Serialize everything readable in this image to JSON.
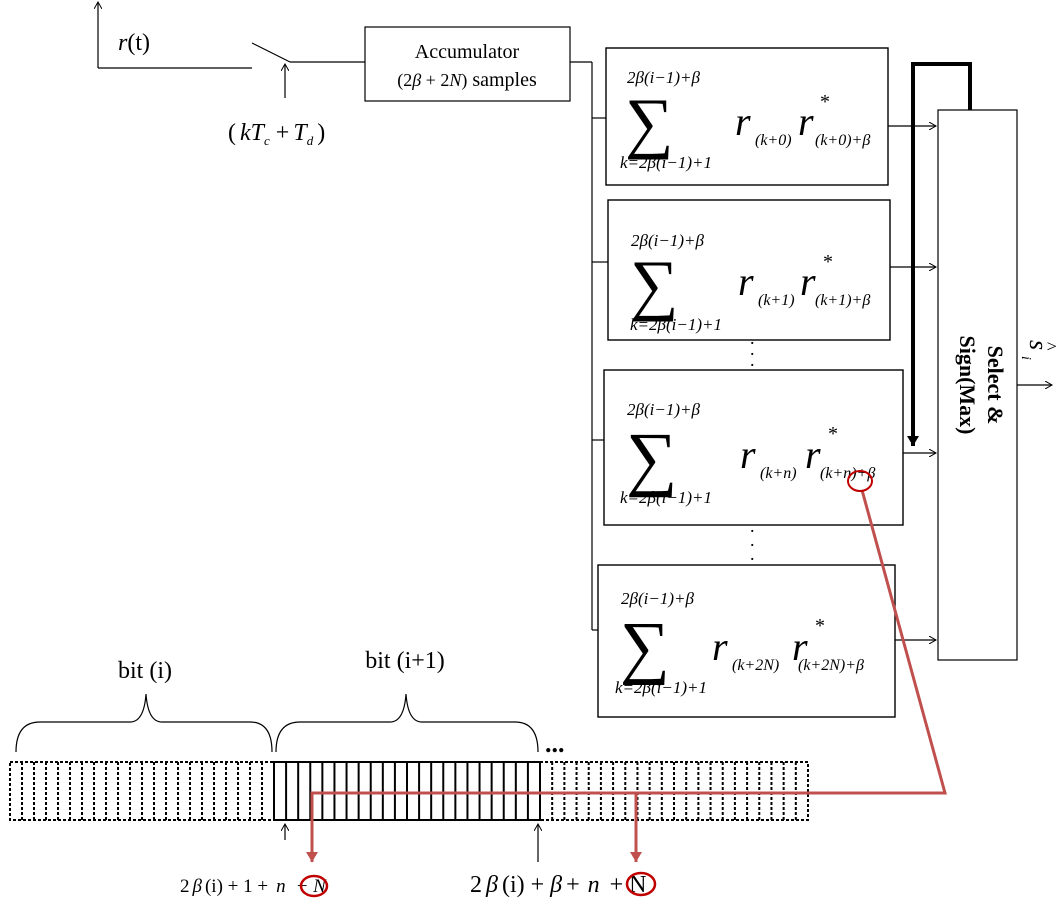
{
  "signal": {
    "r": "r",
    "t": "(t)",
    "sampling": {
      "open": "(",
      "k": "k",
      "T": "T",
      "c": "c",
      "plus": "+",
      "T2": "T",
      "d": "d",
      "close": ")"
    }
  },
  "accumulator": {
    "title": "Accumulator",
    "paren_open": "(2",
    "beta": "β",
    "plus2": " + 2",
    "N": "N",
    "paren_close": ")",
    "samples": " samples"
  },
  "correlators": [
    {
      "upper": "2β(i−1)+β",
      "sigma": "∑",
      "lower": "k=2β(i−1)+1",
      "r1": "r",
      "sub1": "(k+0)",
      "r2": "r",
      "star": "*",
      "sub2": "(k+0)+β"
    },
    {
      "upper": "2β(i−1)+β",
      "sigma": "∑",
      "lower": "k=2β(i−1)+1",
      "r1": "r",
      "sub1": "(k+1)",
      "r2": "r",
      "star": "*",
      "sub2": "(k+1)+β"
    },
    {
      "upper": "2β(i−1)+β",
      "sigma": "∑",
      "lower": "k=2β(i−1)+1",
      "r1": "r",
      "sub1": "(k+n)",
      "r2": "r",
      "star": "*",
      "sub2": "(k+n)+β"
    },
    {
      "upper": "2β(i−1)+β",
      "sigma": "∑",
      "lower": "k=2β(i−1)+1",
      "r1": "r",
      "sub1": "(k+2N)",
      "r2": "r",
      "star": "*",
      "sub2": "(k+2N)+β"
    }
  ],
  "dots": ".",
  "selector": {
    "line1": "Select &",
    "line2": "Sign(Max)"
  },
  "output": {
    "s": "s",
    "hat": "^",
    "i": "i"
  },
  "bits": {
    "bit_i": "bit (i)",
    "bit_i1": "bit (i+1)",
    "ellipsis": "..."
  },
  "bottom_labels": {
    "left": {
      "a": "2",
      "beta": "β",
      "b": "(i) + 1 +",
      "n": "n",
      "c": "− N"
    },
    "right": {
      "a": "2",
      "beta": "β",
      "b": "(i) +",
      "beta2": "β",
      "plus": "+",
      "n": "n",
      "c": "+ N"
    }
  },
  "colors": {
    "ink": "#000000",
    "highlight": "#c0504d",
    "circle": "#c00000"
  }
}
